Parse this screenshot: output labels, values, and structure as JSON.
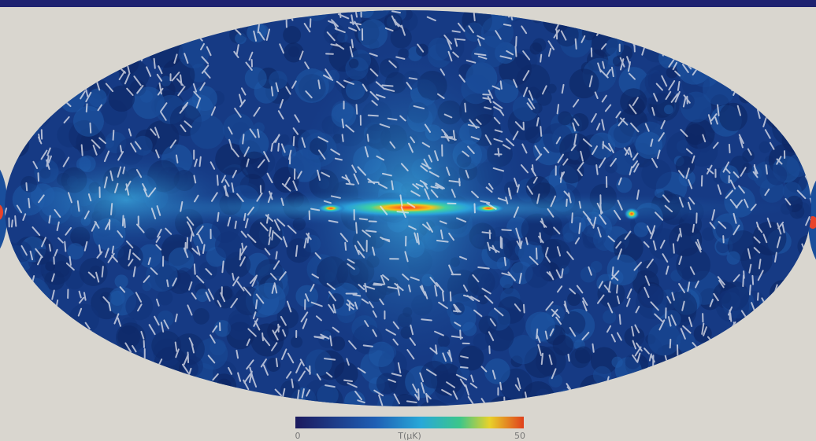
{
  "colorbar": {
    "min": 0,
    "label": "T(μK)",
    "max": 50
  }
}
